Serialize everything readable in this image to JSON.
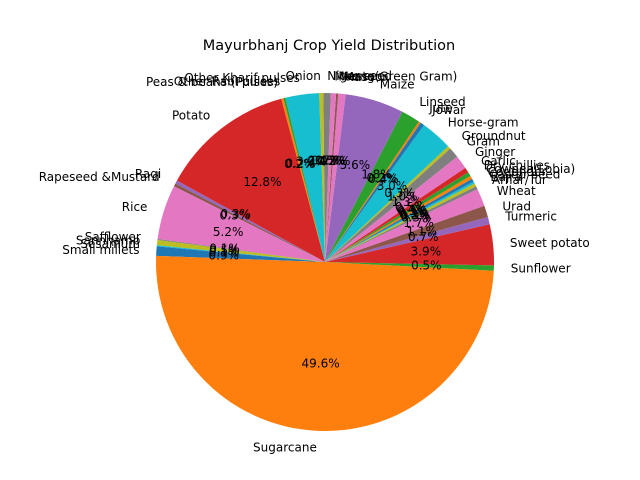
{
  "chart_data": {
    "type": "pie",
    "title": "Mayurbhanj Crop Yield Distribution",
    "start_angle_deg": 105,
    "direction": "counterclockwise",
    "autopct_format": "{:.1f}%",
    "slices": [
      {
        "label": "Potato",
        "percent": 12.8,
        "color": "#d62728"
      },
      {
        "label": "Ragi",
        "percent": 0.3,
        "color": "#9467bd"
      },
      {
        "label": "Rapeseed &Mustard",
        "percent": 0.3,
        "color": "#8c564b"
      },
      {
        "label": "Rice",
        "percent": 5.2,
        "color": "#e377c2"
      },
      {
        "label": "Safflower",
        "percent": 0.1,
        "color": "#7f7f7f"
      },
      {
        "label": "Sannhamp",
        "percent": 0.5,
        "color": "#bcbd22"
      },
      {
        "label": "Sesamum",
        "percent": 0.1,
        "color": "#17becf"
      },
      {
        "label": "Small millets",
        "percent": 0.9,
        "color": "#1f77b4"
      },
      {
        "label": "Sugarcane",
        "percent": 49.6,
        "color": "#ff7f0e"
      },
      {
        "label": "Sunflower",
        "percent": 0.5,
        "color": "#2ca02c"
      },
      {
        "label": "Sweet potato",
        "percent": 3.9,
        "color": "#d62728"
      },
      {
        "label": "Turmeric",
        "percent": 0.7,
        "color": "#9467bd"
      },
      {
        "label": "Urad",
        "percent": 1.1,
        "color": "#8c564b"
      },
      {
        "label": "Wheat",
        "percent": 1.7,
        "color": "#e377c2"
      },
      {
        "label": "Arhar/Tur",
        "percent": 0.3,
        "color": "#7f7f7f"
      },
      {
        "label": "Bajra",
        "percent": 0.3,
        "color": "#bcbd22"
      },
      {
        "label": "Castor seed",
        "percent": 0.2,
        "color": "#17becf"
      },
      {
        "label": "Coriander",
        "percent": 0.3,
        "color": "#1f77b4"
      },
      {
        "label": "Cowpea(Lobia)",
        "percent": 0.3,
        "color": "#ff7f0e"
      },
      {
        "label": "Dry chillies",
        "percent": 0.4,
        "color": "#2ca02c"
      },
      {
        "label": "Garlic",
        "percent": 0.5,
        "color": "#d62728"
      },
      {
        "label": "Ginger",
        "percent": 1.3,
        "color": "#e377c2"
      },
      {
        "label": "Gram",
        "percent": 1.0,
        "color": "#7f7f7f"
      },
      {
        "label": "Groundnut",
        "percent": 0.3,
        "color": "#bcbd22"
      },
      {
        "label": "Horse-gram",
        "percent": 3.0,
        "color": "#17becf"
      },
      {
        "label": "Jowar",
        "percent": 0.4,
        "color": "#1f77b4"
      },
      {
        "label": "Jute",
        "percent": 0.2,
        "color": "#ff7f0e"
      },
      {
        "label": "Linseed",
        "percent": 1.8,
        "color": "#2ca02c"
      },
      {
        "label": "Maize",
        "percent": 5.6,
        "color": "#9467bd"
      },
      {
        "label": "Masoor",
        "percent": 0.7,
        "color": "#e377c2"
      },
      {
        "label": "Mesta",
        "percent": 0.2,
        "color": "#8c564b"
      },
      {
        "label": "Moong(Green Gram)",
        "percent": 0.5,
        "color": "#e377c2"
      },
      {
        "label": "Niger seed",
        "percent": 0.7,
        "color": "#7f7f7f"
      },
      {
        "label": "Onion",
        "percent": 0.4,
        "color": "#bcbd22"
      },
      {
        "label": "Other Kharif pulses",
        "percent": 3.2,
        "color": "#17becf"
      },
      {
        "label": "Other Rabi pulses",
        "percent": 0.2,
        "color": "#2ca02c"
      },
      {
        "label": "Peas & beans (Pulses)",
        "percent": 0.2,
        "color": "#ff7f0e"
      }
    ]
  }
}
